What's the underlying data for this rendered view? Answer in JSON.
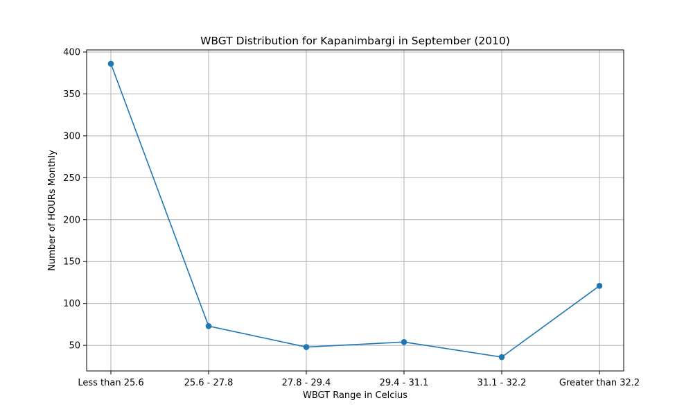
{
  "chart_data": {
    "type": "line",
    "title": "WBGT Distribution for Kapanimbargi in September (2010)",
    "xlabel": "WBGT Range in Celcius",
    "ylabel": "Number of HOURs Monthly",
    "categories": [
      "Less than 25.6",
      "25.6 - 27.8",
      "27.8 - 29.4",
      "29.4 - 31.1",
      "31.1 - 32.2",
      "Greater than 32.2"
    ],
    "series": [
      {
        "values": [
          386,
          73,
          48,
          54,
          36,
          121
        ],
        "color": "#1f77b4",
        "marker": "circle"
      }
    ],
    "y_ticks": [
      50,
      100,
      150,
      200,
      250,
      300,
      350,
      400
    ],
    "ylim": [
      19.5,
      402.5
    ],
    "grid": true,
    "legend": "none"
  }
}
